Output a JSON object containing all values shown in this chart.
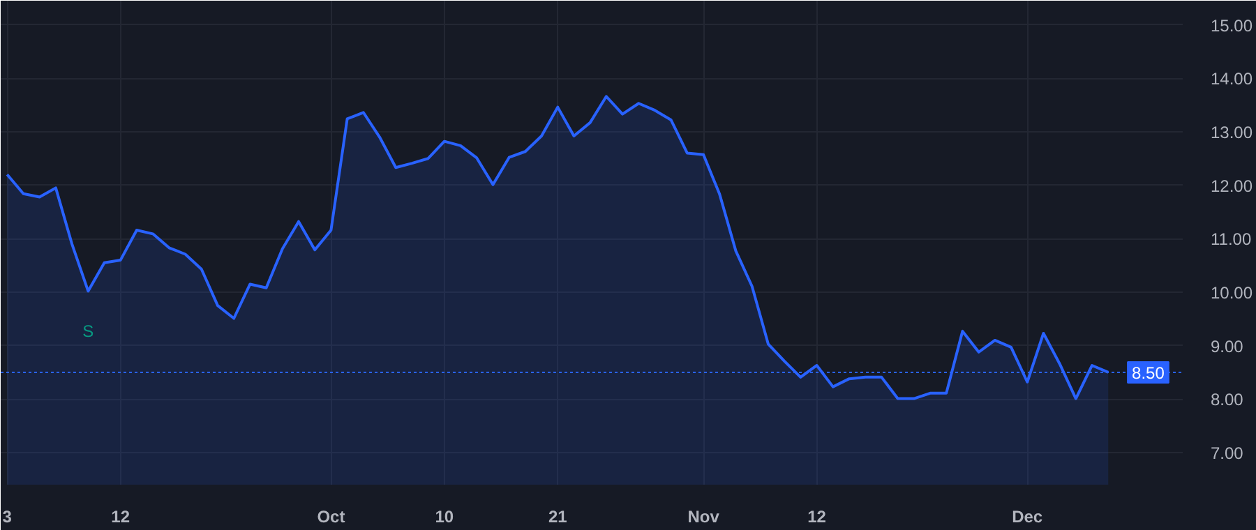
{
  "chart_data": {
    "type": "area",
    "categories": [
      "3",
      null,
      null,
      null,
      null,
      null,
      null,
      "12",
      null,
      null,
      null,
      null,
      null,
      null,
      null,
      null,
      null,
      null,
      null,
      null,
      "Oct",
      null,
      null,
      null,
      null,
      null,
      null,
      "10",
      null,
      null,
      null,
      null,
      null,
      null,
      "21",
      null,
      null,
      null,
      null,
      null,
      null,
      null,
      null,
      "Nov",
      null,
      null,
      null,
      null,
      null,
      null,
      "12",
      null,
      null,
      null,
      null,
      null,
      null,
      null,
      null,
      null,
      null,
      null,
      null,
      "Dec",
      null,
      null,
      null,
      null,
      null
    ],
    "series": [
      {
        "color": "#2962ff",
        "values": [
          12.2,
          11.84,
          11.78,
          11.95,
          10.9,
          10.02,
          10.55,
          10.6,
          11.16,
          11.09,
          10.83,
          10.71,
          10.43,
          9.75,
          9.51,
          10.15,
          10.08,
          10.81,
          11.32,
          10.79,
          11.16,
          13.24,
          13.36,
          12.9,
          12.33,
          12.41,
          12.5,
          12.82,
          12.74,
          12.51,
          12.01,
          12.52,
          12.63,
          12.92,
          13.46,
          12.92,
          13.17,
          13.66,
          13.33,
          13.53,
          13.4,
          13.22,
          12.6,
          12.57,
          11.83,
          10.77,
          10.11,
          9.03,
          8.71,
          8.41,
          8.63,
          8.23,
          8.38,
          8.41,
          8.41,
          8.01,
          8.01,
          8.11,
          8.11,
          9.27,
          8.88,
          9.1,
          8.97,
          8.32,
          9.23,
          8.66,
          8.01,
          8.63,
          8.5
        ]
      }
    ],
    "ylim": [
      6.4,
      15.45
    ],
    "yticks": [
      {
        "value": 7,
        "label": "7.00"
      },
      {
        "value": 8,
        "label": "8.00"
      },
      {
        "value": 9,
        "label": "9.00"
      },
      {
        "value": 10,
        "label": "10.00"
      },
      {
        "value": 11,
        "label": "11.00"
      },
      {
        "value": 12,
        "label": "12.00"
      },
      {
        "value": 13,
        "label": "13.00"
      },
      {
        "value": 14,
        "label": "14.00"
      },
      {
        "value": 15,
        "label": "15.00"
      }
    ],
    "ref_lines": [
      {
        "axis": "y",
        "value": 8.5,
        "label": "8.50",
        "color": "#2962ff",
        "line_style": "dotted"
      }
    ],
    "annotations": [
      {
        "text": "S",
        "y": 10.02
      }
    ],
    "grid": true
  }
}
